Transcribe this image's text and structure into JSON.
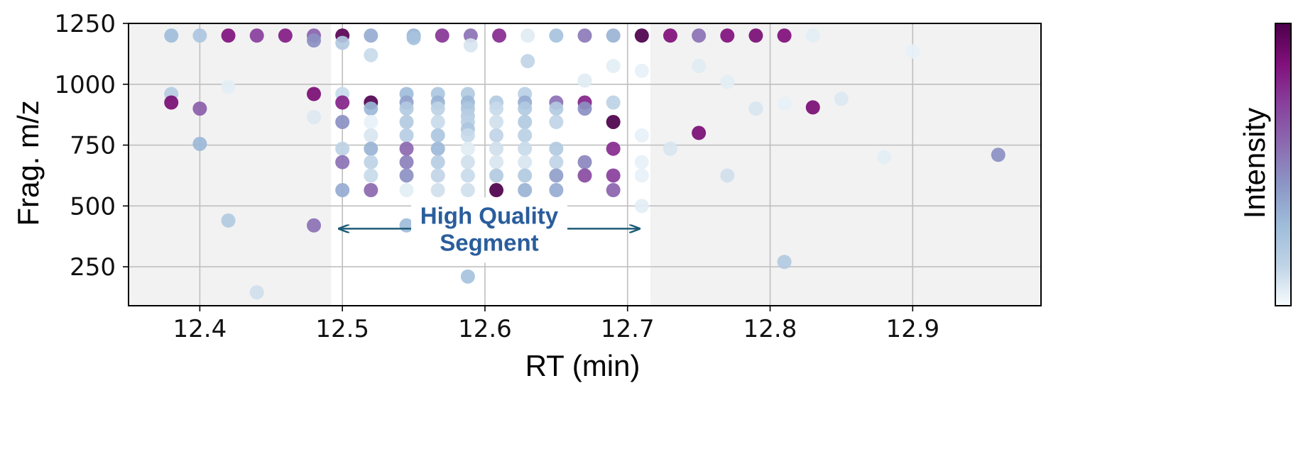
{
  "colors": {
    "background": "#ffffff",
    "plot_shade": "#f2f2f2",
    "grid": "#bfbfbf",
    "annotation_text": "#2a5d9c",
    "arrow": "#1e5b78",
    "colormap": [
      "#f7fcfd",
      "#bfd3e6",
      "#9ebcda",
      "#8c96c6",
      "#8c6bb1",
      "#88419d",
      "#810f7c",
      "#4d004b"
    ]
  },
  "chart_data": {
    "type": "scatter",
    "xlabel": "RT (min)",
    "ylabel": "Frag. m/z",
    "colorbar_label": "Intensity",
    "xlim": [
      12.35,
      12.99
    ],
    "ylim": [
      90,
      1250
    ],
    "x_ticks": [
      12.4,
      12.5,
      12.6,
      12.7,
      12.8,
      12.9
    ],
    "y_ticks": [
      250,
      500,
      750,
      1000,
      1250
    ],
    "x_tick_labels": [
      "12.4",
      "12.5",
      "12.6",
      "12.7",
      "12.8",
      "12.9"
    ],
    "y_tick_labels": [
      "250",
      "500",
      "750",
      "1000",
      "1250"
    ],
    "grid": true,
    "shaded_outside_range": [
      12.492,
      12.716
    ],
    "annotation": {
      "lines": [
        "High Quality",
        "Segment"
      ],
      "x_range": [
        12.498,
        12.708
      ],
      "y": 357
    },
    "points": [
      {
        "x": 12.38,
        "y": 1200,
        "i": 0.28
      },
      {
        "x": 12.4,
        "y": 1200,
        "i": 0.22
      },
      {
        "x": 12.42,
        "y": 1200,
        "i": 0.85
      },
      {
        "x": 12.44,
        "y": 1200,
        "i": 0.72
      },
      {
        "x": 12.46,
        "y": 1200,
        "i": 0.82
      },
      {
        "x": 12.48,
        "y": 1200,
        "i": 0.6
      },
      {
        "x": 12.48,
        "y": 1180,
        "i": 0.45
      },
      {
        "x": 12.5,
        "y": 1200,
        "i": 0.97
      },
      {
        "x": 12.5,
        "y": 1170,
        "i": 0.2
      },
      {
        "x": 12.52,
        "y": 1200,
        "i": 0.35
      },
      {
        "x": 12.52,
        "y": 1120,
        "i": 0.12
      },
      {
        "x": 12.55,
        "y": 1200,
        "i": 0.32
      },
      {
        "x": 12.55,
        "y": 1190,
        "i": 0.25
      },
      {
        "x": 12.57,
        "y": 1200,
        "i": 0.75
      },
      {
        "x": 12.59,
        "y": 1200,
        "i": 0.55
      },
      {
        "x": 12.59,
        "y": 1160,
        "i": 0.08
      },
      {
        "x": 12.61,
        "y": 1200,
        "i": 0.78
      },
      {
        "x": 12.63,
        "y": 1200,
        "i": 0.06
      },
      {
        "x": 12.63,
        "y": 1095,
        "i": 0.14
      },
      {
        "x": 12.65,
        "y": 1200,
        "i": 0.25
      },
      {
        "x": 12.67,
        "y": 1200,
        "i": 0.52
      },
      {
        "x": 12.67,
        "y": 1015,
        "i": 0.06
      },
      {
        "x": 12.69,
        "y": 1200,
        "i": 0.32
      },
      {
        "x": 12.69,
        "y": 1075,
        "i": 0.05
      },
      {
        "x": 12.71,
        "y": 1200,
        "i": 1.0
      },
      {
        "x": 12.71,
        "y": 1055,
        "i": 0.04
      },
      {
        "x": 12.73,
        "y": 1200,
        "i": 0.86
      },
      {
        "x": 12.75,
        "y": 1200,
        "i": 0.55
      },
      {
        "x": 12.75,
        "y": 1075,
        "i": 0.06
      },
      {
        "x": 12.77,
        "y": 1200,
        "i": 0.85
      },
      {
        "x": 12.77,
        "y": 1010,
        "i": 0.05
      },
      {
        "x": 12.79,
        "y": 1200,
        "i": 0.88
      },
      {
        "x": 12.81,
        "y": 1200,
        "i": 0.86
      },
      {
        "x": 12.83,
        "y": 1200,
        "i": 0.05
      },
      {
        "x": 12.9,
        "y": 1135,
        "i": 0.04
      },
      {
        "x": 12.38,
        "y": 960,
        "i": 0.18
      },
      {
        "x": 12.38,
        "y": 925,
        "i": 0.88
      },
      {
        "x": 12.4,
        "y": 900,
        "i": 0.62
      },
      {
        "x": 12.4,
        "y": 755,
        "i": 0.3
      },
      {
        "x": 12.42,
        "y": 990,
        "i": 0.05
      },
      {
        "x": 12.42,
        "y": 440,
        "i": 0.2
      },
      {
        "x": 12.44,
        "y": 145,
        "i": 0.1
      },
      {
        "x": 12.48,
        "y": 960,
        "i": 0.88
      },
      {
        "x": 12.48,
        "y": 865,
        "i": 0.07
      },
      {
        "x": 12.48,
        "y": 420,
        "i": 0.55
      },
      {
        "x": 12.5,
        "y": 960,
        "i": 0.12
      },
      {
        "x": 12.5,
        "y": 925,
        "i": 0.8
      },
      {
        "x": 12.5,
        "y": 845,
        "i": 0.45
      },
      {
        "x": 12.5,
        "y": 735,
        "i": 0.15
      },
      {
        "x": 12.5,
        "y": 680,
        "i": 0.55
      },
      {
        "x": 12.5,
        "y": 565,
        "i": 0.35
      },
      {
        "x": 12.52,
        "y": 925,
        "i": 0.98
      },
      {
        "x": 12.52,
        "y": 900,
        "i": 0.3
      },
      {
        "x": 12.52,
        "y": 845,
        "i": 0.04
      },
      {
        "x": 12.52,
        "y": 790,
        "i": 0.08
      },
      {
        "x": 12.52,
        "y": 735,
        "i": 0.32
      },
      {
        "x": 12.52,
        "y": 680,
        "i": 0.15
      },
      {
        "x": 12.52,
        "y": 625,
        "i": 0.12
      },
      {
        "x": 12.52,
        "y": 565,
        "i": 0.58
      },
      {
        "x": 12.545,
        "y": 960,
        "i": 0.28
      },
      {
        "x": 12.545,
        "y": 925,
        "i": 0.38
      },
      {
        "x": 12.545,
        "y": 900,
        "i": 0.2
      },
      {
        "x": 12.545,
        "y": 845,
        "i": 0.2
      },
      {
        "x": 12.545,
        "y": 790,
        "i": 0.18
      },
      {
        "x": 12.545,
        "y": 735,
        "i": 0.58
      },
      {
        "x": 12.545,
        "y": 680,
        "i": 0.5
      },
      {
        "x": 12.545,
        "y": 625,
        "i": 0.45
      },
      {
        "x": 12.545,
        "y": 565,
        "i": 0.05
      },
      {
        "x": 12.545,
        "y": 420,
        "i": 0.28
      },
      {
        "x": 12.567,
        "y": 960,
        "i": 0.22
      },
      {
        "x": 12.567,
        "y": 925,
        "i": 0.32
      },
      {
        "x": 12.567,
        "y": 900,
        "i": 0.15
      },
      {
        "x": 12.567,
        "y": 845,
        "i": 0.12
      },
      {
        "x": 12.567,
        "y": 790,
        "i": 0.22
      },
      {
        "x": 12.567,
        "y": 735,
        "i": 0.3
      },
      {
        "x": 12.567,
        "y": 680,
        "i": 0.18
      },
      {
        "x": 12.567,
        "y": 625,
        "i": 0.14
      },
      {
        "x": 12.567,
        "y": 565,
        "i": 0.1
      },
      {
        "x": 12.588,
        "y": 960,
        "i": 0.2
      },
      {
        "x": 12.588,
        "y": 925,
        "i": 0.3
      },
      {
        "x": 12.588,
        "y": 900,
        "i": 0.22
      },
      {
        "x": 12.588,
        "y": 870,
        "i": 0.18
      },
      {
        "x": 12.588,
        "y": 845,
        "i": 0.16
      },
      {
        "x": 12.588,
        "y": 815,
        "i": 0.22
      },
      {
        "x": 12.588,
        "y": 790,
        "i": 0.12
      },
      {
        "x": 12.588,
        "y": 735,
        "i": 0.06
      },
      {
        "x": 12.588,
        "y": 680,
        "i": 0.1
      },
      {
        "x": 12.588,
        "y": 625,
        "i": 0.12
      },
      {
        "x": 12.588,
        "y": 565,
        "i": 0.1
      },
      {
        "x": 12.588,
        "y": 210,
        "i": 0.25
      },
      {
        "x": 12.608,
        "y": 925,
        "i": 0.2
      },
      {
        "x": 12.608,
        "y": 900,
        "i": 0.12
      },
      {
        "x": 12.608,
        "y": 845,
        "i": 0.1
      },
      {
        "x": 12.608,
        "y": 790,
        "i": 0.14
      },
      {
        "x": 12.608,
        "y": 735,
        "i": 0.1
      },
      {
        "x": 12.608,
        "y": 680,
        "i": 0.08
      },
      {
        "x": 12.608,
        "y": 625,
        "i": 0.2
      },
      {
        "x": 12.608,
        "y": 565,
        "i": 1.0
      },
      {
        "x": 12.628,
        "y": 960,
        "i": 0.16
      },
      {
        "x": 12.628,
        "y": 925,
        "i": 0.35
      },
      {
        "x": 12.628,
        "y": 900,
        "i": 0.2
      },
      {
        "x": 12.628,
        "y": 845,
        "i": 0.2
      },
      {
        "x": 12.628,
        "y": 790,
        "i": 0.16
      },
      {
        "x": 12.628,
        "y": 735,
        "i": 0.12
      },
      {
        "x": 12.628,
        "y": 680,
        "i": 0.08
      },
      {
        "x": 12.628,
        "y": 625,
        "i": 0.2
      },
      {
        "x": 12.628,
        "y": 565,
        "i": 0.32
      },
      {
        "x": 12.65,
        "y": 925,
        "i": 0.55
      },
      {
        "x": 12.65,
        "y": 900,
        "i": 0.2
      },
      {
        "x": 12.65,
        "y": 845,
        "i": 0.14
      },
      {
        "x": 12.65,
        "y": 735,
        "i": 0.2
      },
      {
        "x": 12.65,
        "y": 680,
        "i": 0.14
      },
      {
        "x": 12.65,
        "y": 625,
        "i": 0.4
      },
      {
        "x": 12.65,
        "y": 565,
        "i": 0.35
      },
      {
        "x": 12.67,
        "y": 925,
        "i": 0.8
      },
      {
        "x": 12.67,
        "y": 900,
        "i": 0.45
      },
      {
        "x": 12.67,
        "y": 680,
        "i": 0.48
      },
      {
        "x": 12.67,
        "y": 625,
        "i": 0.68
      },
      {
        "x": 12.69,
        "y": 925,
        "i": 0.15
      },
      {
        "x": 12.69,
        "y": 845,
        "i": 1.0
      },
      {
        "x": 12.69,
        "y": 735,
        "i": 0.78
      },
      {
        "x": 12.69,
        "y": 625,
        "i": 0.72
      },
      {
        "x": 12.69,
        "y": 565,
        "i": 0.6
      },
      {
        "x": 12.71,
        "y": 790,
        "i": 0.04
      },
      {
        "x": 12.71,
        "y": 680,
        "i": 0.04
      },
      {
        "x": 12.71,
        "y": 625,
        "i": 0.04
      },
      {
        "x": 12.71,
        "y": 500,
        "i": 0.05
      },
      {
        "x": 12.73,
        "y": 735,
        "i": 0.08
      },
      {
        "x": 12.75,
        "y": 800,
        "i": 0.88
      },
      {
        "x": 12.77,
        "y": 625,
        "i": 0.1
      },
      {
        "x": 12.79,
        "y": 900,
        "i": 0.08
      },
      {
        "x": 12.81,
        "y": 920,
        "i": 0.04
      },
      {
        "x": 12.81,
        "y": 270,
        "i": 0.2
      },
      {
        "x": 12.83,
        "y": 905,
        "i": 0.88
      },
      {
        "x": 12.85,
        "y": 940,
        "i": 0.07
      },
      {
        "x": 12.88,
        "y": 700,
        "i": 0.05
      },
      {
        "x": 12.96,
        "y": 710,
        "i": 0.45
      }
    ]
  }
}
